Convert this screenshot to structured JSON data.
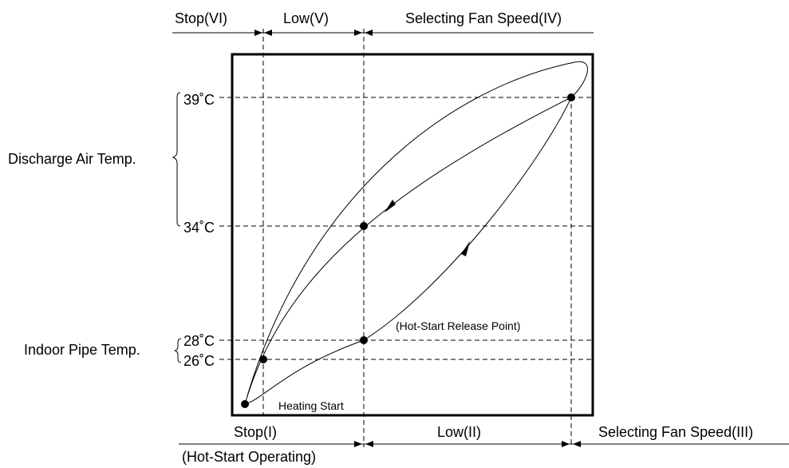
{
  "top_band": {
    "stop": "Stop(VI)",
    "low": "Low(V)",
    "selecting": "Selecting Fan Speed(IV)"
  },
  "bottom_band": {
    "stop": "Stop(I)",
    "stop_note": "(Hot-Start Operating)",
    "low": "Low(II)",
    "selecting": "Selecting Fan Speed(III)"
  },
  "left_labels": {
    "discharge": "Discharge Air Temp.",
    "indoor_pipe": "Indoor Pipe Temp."
  },
  "temperatures": {
    "t39": "39˚C",
    "t34": "34˚C",
    "t28": "28˚C",
    "t26": "26˚C"
  },
  "annotations": {
    "hot_start_release": "(Hot-Start Release Point)",
    "heating_start": "Heating Start"
  }
}
